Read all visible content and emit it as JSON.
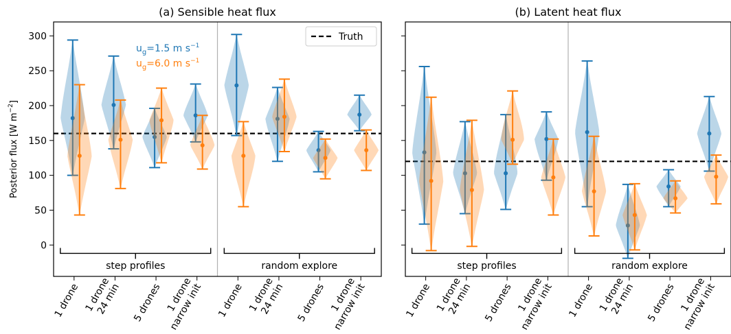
{
  "chart_data": [
    {
      "panel_id": "a",
      "type": "violin",
      "title": "(a) Sensible heat flux",
      "ylabel": "Posterior flux [W m",
      "ylabel_sup": "−2",
      "ylabel_end": "]",
      "ylim": [
        -45,
        320
      ],
      "yticks": [
        "0",
        "50",
        "100",
        "150",
        "200",
        "250",
        "300"
      ],
      "ytick_values": [
        0,
        50,
        100,
        150,
        200,
        250,
        300
      ],
      "categories": [
        "1 drone",
        "1 drone\n24 min",
        "5 drones",
        "1 drone\nnarrow init",
        "1 drone",
        "1 drone\n24 min",
        "5 drones",
        "1 drone\nnarrow init"
      ],
      "groups": [
        "step profiles",
        "random explore"
      ],
      "truth": 160,
      "legend": "Truth",
      "legend_position": "top-right",
      "series_labels": [
        {
          "base": "u",
          "sub": "g",
          "rest": "=1.5 m s",
          "sup": "−1",
          "color": "#1f77b4"
        },
        {
          "base": "u",
          "sub": "g",
          "rest": "=6.0 m s",
          "sup": "−1",
          "color": "#ff7f0e"
        }
      ],
      "series": [
        {
          "color": "#1f77b4",
          "min": [
            100,
            138,
            111,
            148,
            157,
            120,
            105,
            164
          ],
          "max": [
            294,
            271,
            196,
            231,
            302,
            226,
            163,
            215
          ],
          "median": [
            182,
            201,
            155,
            186,
            229,
            181,
            136,
            187
          ]
        },
        {
          "color": "#ff7f0e",
          "min": [
            43,
            81,
            118,
            109,
            55,
            134,
            95,
            107
          ],
          "max": [
            230,
            208,
            225,
            186,
            177,
            238,
            152,
            165
          ],
          "median": [
            128,
            151,
            179,
            143,
            128,
            184,
            125,
            136
          ]
        }
      ]
    },
    {
      "panel_id": "b",
      "type": "violin",
      "title": "(b) Latent heat flux",
      "ylim": [
        -45,
        320
      ],
      "categories": [
        "1 drone",
        "1 drone\n24 min",
        "5 drones",
        "1 drone\nnarrow init",
        "1 drone",
        "1 drone\n24 min",
        "5 drones",
        "1 drone\nnarrow init"
      ],
      "groups": [
        "step profiles",
        "random explore"
      ],
      "truth": 120,
      "series": [
        {
          "color": "#1f77b4",
          "min": [
            30,
            45,
            51,
            93,
            55,
            -19,
            55,
            106
          ],
          "max": [
            256,
            177,
            187,
            191,
            264,
            87,
            108,
            213
          ],
          "median": [
            133,
            103,
            103,
            152,
            162,
            28,
            84,
            160
          ]
        },
        {
          "color": "#ff7f0e",
          "min": [
            -8,
            -2,
            116,
            43,
            13,
            -7,
            46,
            59
          ],
          "max": [
            212,
            179,
            221,
            152,
            156,
            88,
            92,
            129
          ],
          "median": [
            92,
            79,
            151,
            97,
            77,
            43,
            67,
            98
          ]
        }
      ]
    }
  ]
}
